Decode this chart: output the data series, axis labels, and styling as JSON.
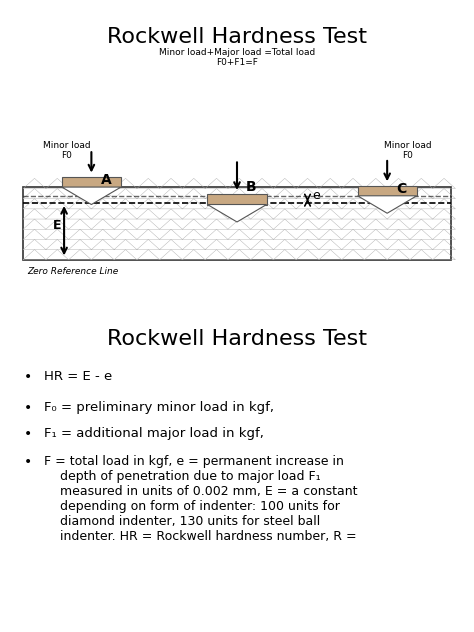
{
  "title1": "Rockwell Hardness Test",
  "title2": "Rockwell Hardness Test",
  "bg_color": "#f0f0f0",
  "diagram_bg": "#e8e8e8",
  "indenter_fill": "#c8a882",
  "indenter_edge": "#555555",
  "material_fill": "#d8d8d8",
  "material_edge": "#333333",
  "arrow_color": "#111111",
  "label_A": "A",
  "label_B": "B",
  "label_C": "C",
  "label_E": "E",
  "label_e": "e",
  "minor_load_left": "Minor load\nF0",
  "minor_load_right": "Minor load\nF0",
  "total_load": "Minor load+Major load =Total load\nF0+F1=F",
  "zero_ref": "Zero Reference Line",
  "bullet_items": [
    "HR = E - e",
    "F₀ = preliminary minor load in kgf,",
    "F₁ = additional major load in kgf,",
    "F = total load in kgf, e = permanent increase in\n    depth of penetration due to major load F₁\n    measured in units of 0.002 mm, E = a constant\n    depending on form of indenter: 100 units for\n    diamond indenter, 130 units for steel ball\n    indenter. HR = Rockwell hardness number, R ="
  ],
  "font_size_title": 16,
  "font_size_label": 8,
  "font_size_bullet": 9
}
